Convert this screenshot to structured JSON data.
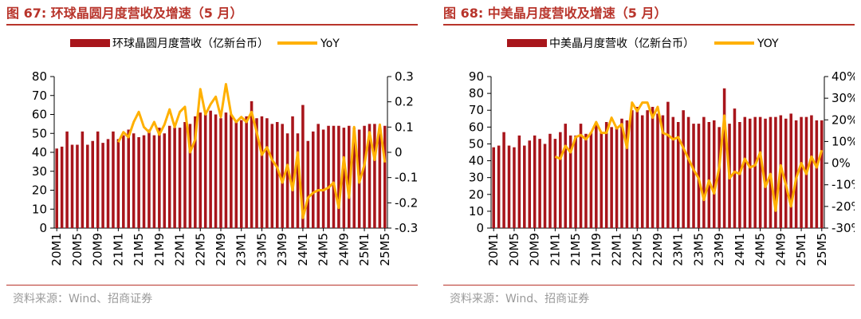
{
  "charts": [
    {
      "fig_title": "图 67:  环球晶圆月度营收及增速（5 月）",
      "source": "资料来源：Wind、招商证券"
    },
    {
      "fig_title": "图 68:  中美晶月度营收及增速（5 月）",
      "source": "资料来源：Wind、招商证券"
    }
  ],
  "colors": {
    "bar": "#a8151b",
    "line": "#ffb000",
    "accent": "#b8342b"
  },
  "chart_data": [
    {
      "type": "bar+line",
      "categories": [
        "20M1",
        "20M2",
        "20M3",
        "20M4",
        "20M5",
        "20M6",
        "20M7",
        "20M8",
        "20M9",
        "20M10",
        "20M11",
        "20M12",
        "21M1",
        "21M2",
        "21M3",
        "21M4",
        "21M5",
        "21M6",
        "21M7",
        "21M8",
        "21M9",
        "21M10",
        "21M11",
        "21M12",
        "22M1",
        "22M2",
        "22M3",
        "22M4",
        "22M5",
        "22M6",
        "22M7",
        "22M8",
        "22M9",
        "22M10",
        "22M11",
        "22M12",
        "23M1",
        "23M2",
        "23M3",
        "23M4",
        "23M5",
        "23M6",
        "23M7",
        "23M8",
        "23M9",
        "23M10",
        "23M11",
        "23M12",
        "24M1",
        "24M2",
        "24M3",
        "24M4",
        "24M5",
        "24M6",
        "24M7",
        "24M8",
        "24M9",
        "24M10",
        "24M11",
        "24M12",
        "25M1",
        "25M2",
        "25M3",
        "25M4",
        "25M5"
      ],
      "x_tick_labels": [
        "20M1",
        "20M5",
        "20M9",
        "21M1",
        "21M5",
        "21M9",
        "22M1",
        "22M5",
        "22M9",
        "23M1",
        "23M5",
        "23M9",
        "24M1",
        "24M5",
        "24M9",
        "25M1",
        "25M5"
      ],
      "y_ticks": [
        "0",
        "10",
        "20",
        "30",
        "40",
        "50",
        "60",
        "70",
        "80"
      ],
      "y2_ticks": [
        "-0.3",
        "-0.2",
        "-0.1",
        "0",
        "0.1",
        "0.2",
        "0.3"
      ],
      "ylim": [
        0,
        80
      ],
      "y2lim": [
        -0.3,
        0.3
      ],
      "series": [
        {
          "name": "环球晶圆月度营收（亿新台币）",
          "type": "bar",
          "values": [
            42,
            43,
            51,
            44,
            44,
            51,
            44,
            46,
            51,
            45,
            47,
            51,
            47,
            49,
            52,
            50,
            48,
            49,
            52,
            49,
            53,
            50,
            54,
            53,
            53,
            56,
            55,
            59,
            61,
            60,
            62,
            60,
            58,
            61,
            60,
            57,
            57,
            59,
            67,
            58,
            59,
            58,
            55,
            56,
            55,
            50,
            59,
            50,
            65,
            46,
            51,
            55,
            52,
            54,
            54,
            54,
            53,
            54,
            53,
            52,
            54,
            55,
            55,
            50,
            54
          ]
        },
        {
          "name": "YoY",
          "type": "line",
          "values": [
            null,
            null,
            null,
            null,
            null,
            null,
            null,
            null,
            null,
            null,
            null,
            null,
            0.04,
            0.08,
            0.06,
            0.12,
            0.16,
            0.1,
            0.08,
            0.12,
            0.07,
            0.11,
            0.17,
            0.1,
            0.16,
            0.18,
            0.0,
            0.05,
            0.25,
            0.15,
            0.19,
            0.22,
            0.14,
            0.27,
            0.15,
            0.12,
            0.14,
            0.12,
            0.16,
            0.08,
            -0.01,
            0.02,
            -0.03,
            -0.06,
            -0.12,
            -0.05,
            -0.15,
            0.0,
            -0.26,
            -0.18,
            -0.16,
            -0.15,
            -0.15,
            -0.14,
            -0.12,
            -0.22,
            -0.02,
            -0.18,
            0.1,
            -0.12,
            -0.05,
            0.08,
            -0.03,
            0.11,
            -0.04
          ]
        }
      ]
    },
    {
      "type": "bar+line",
      "categories": [
        "20M1",
        "20M2",
        "20M3",
        "20M4",
        "20M5",
        "20M6",
        "20M7",
        "20M8",
        "20M9",
        "20M10",
        "20M11",
        "20M12",
        "21M1",
        "21M2",
        "21M3",
        "21M4",
        "21M5",
        "21M6",
        "21M7",
        "21M8",
        "21M9",
        "21M10",
        "21M11",
        "21M12",
        "22M1",
        "22M2",
        "22M3",
        "22M4",
        "22M5",
        "22M6",
        "22M7",
        "22M8",
        "22M9",
        "22M10",
        "22M11",
        "22M12",
        "23M1",
        "23M2",
        "23M3",
        "23M4",
        "23M5",
        "23M6",
        "23M7",
        "23M8",
        "23M9",
        "23M10",
        "23M11",
        "23M12",
        "24M1",
        "24M2",
        "24M3",
        "24M4",
        "24M5",
        "24M6",
        "24M7",
        "24M8",
        "24M9",
        "24M10",
        "24M11",
        "24M12",
        "25M1",
        "25M2",
        "25M3",
        "25M4",
        "25M5"
      ],
      "x_tick_labels": [
        "20M1",
        "20M5",
        "20M9",
        "21M1",
        "21M5",
        "21M9",
        "22M1",
        "22M5",
        "22M9",
        "23M1",
        "23M5",
        "23M9",
        "24M1",
        "24M5",
        "24M9",
        "25M1",
        "25M5"
      ],
      "y_ticks": [
        "0",
        "10",
        "20",
        "30",
        "40",
        "50",
        "60",
        "70",
        "80",
        "90"
      ],
      "y2_ticks": [
        "-30%",
        "-20%",
        "-10%",
        "0%",
        "10%",
        "20%",
        "30%",
        "40%"
      ],
      "ylim": [
        0,
        90
      ],
      "y2lim": [
        -0.3,
        0.4
      ],
      "series": [
        {
          "name": "中美晶月度营收（亿新台币）",
          "type": "bar",
          "values": [
            48,
            49,
            57,
            49,
            48,
            55,
            49,
            52,
            55,
            53,
            50,
            56,
            53,
            57,
            62,
            55,
            55,
            62,
            56,
            57,
            62,
            57,
            63,
            60,
            60,
            65,
            64,
            70,
            72,
            67,
            70,
            72,
            68,
            67,
            75,
            66,
            63,
            70,
            66,
            62,
            62,
            66,
            63,
            64,
            60,
            83,
            62,
            71,
            63,
            66,
            65,
            66,
            66,
            65,
            66,
            66,
            67,
            65,
            68,
            64,
            66,
            66,
            67,
            64,
            64
          ]
        },
        {
          "name": "YOY",
          "type": "line",
          "values": [
            null,
            null,
            null,
            null,
            null,
            null,
            null,
            null,
            null,
            null,
            null,
            null,
            0.03,
            0.02,
            0.08,
            0.05,
            0.12,
            0.13,
            0.11,
            0.14,
            0.19,
            0.14,
            0.14,
            0.21,
            0.16,
            0.18,
            0.07,
            0.28,
            0.24,
            0.28,
            0.28,
            0.21,
            0.26,
            0.14,
            0.13,
            0.11,
            0.12,
            0.07,
            0.02,
            -0.03,
            -0.07,
            -0.17,
            -0.08,
            -0.14,
            -0.02,
            0.22,
            -0.07,
            -0.04,
            -0.05,
            0.02,
            -0.02,
            -0.01,
            0.05,
            -0.11,
            -0.05,
            -0.22,
            -0.01,
            -0.1,
            -0.2,
            -0.07,
            0.0,
            -0.05,
            0.03,
            -0.02,
            0.06
          ]
        }
      ]
    }
  ]
}
